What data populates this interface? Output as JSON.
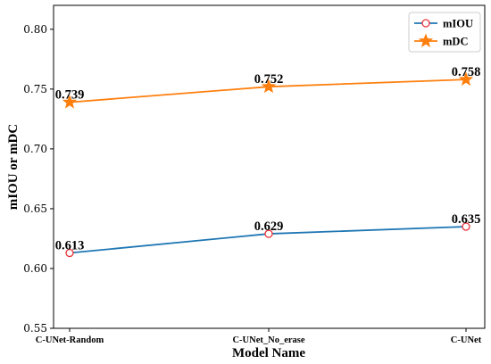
{
  "chart_data": {
    "type": "line",
    "categories": [
      "C-UNet-Random",
      "C-UNet_No_erase",
      "C-UNet"
    ],
    "xlabel": "Model Name",
    "ylabel": "mIOU or mDC",
    "ylim": [
      0.55,
      0.82
    ],
    "yticks": [
      "0.55",
      "0.60",
      "0.65",
      "0.70",
      "0.75",
      "0.80"
    ],
    "grid": false,
    "legend_position": "top-right",
    "series": [
      {
        "name": "mIOU",
        "values": [
          0.613,
          0.629,
          0.635
        ],
        "labels": [
          "0.613",
          "0.629",
          "0.635"
        ],
        "color": "#1f77b4",
        "marker": "circle",
        "marker_face": "#ffffff",
        "marker_edge": "#e8343a"
      },
      {
        "name": "mDC",
        "values": [
          0.739,
          0.752,
          0.758
        ],
        "labels": [
          "0.739",
          "0.752",
          "0.758"
        ],
        "color": "#ff7f0e",
        "marker": "star",
        "marker_face": "#ff7f0e",
        "marker_edge": "#ff7f0e"
      }
    ]
  }
}
